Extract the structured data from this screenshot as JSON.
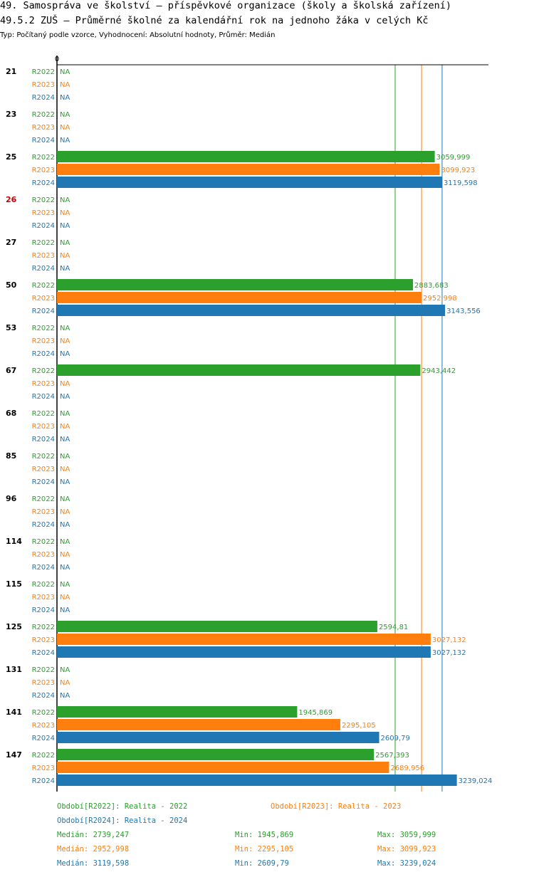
{
  "header": {
    "title": "49. Samospráva ve školství – příspěvkové organizace (školy a školská zařízení)",
    "subtitle": "49.5.2 ZUŠ – Průměrné školné za kalendářní rok na jednoho žáka v celých Kč",
    "meta": "Typ: Počítaný podle vzorce, Vyhodnocení: Absolutní hodnoty, Průměr: Medián"
  },
  "colors": {
    "R2022": "#2ca02c",
    "R2023": "#ff7f0e",
    "R2024": "#1f77b4",
    "highlight": "#cc0000",
    "axis": "#000000"
  },
  "chart_data": {
    "type": "bar",
    "orientation": "horizontal",
    "axis_zero_label": "0",
    "xlim": [
      0,
      3400
    ],
    "series_names": [
      "R2022",
      "R2023",
      "R2024"
    ],
    "na_label": "NA",
    "categories": [
      {
        "label": "21",
        "highlight": false,
        "values": [
          null,
          null,
          null
        ],
        "labels": [
          "NA",
          "NA",
          "NA"
        ]
      },
      {
        "label": "23",
        "highlight": false,
        "values": [
          null,
          null,
          null
        ],
        "labels": [
          "NA",
          "NA",
          "NA"
        ]
      },
      {
        "label": "25",
        "highlight": false,
        "values": [
          3059.999,
          3099.923,
          3119.598
        ],
        "labels": [
          "3059,999",
          "3099,923",
          "3119,598"
        ]
      },
      {
        "label": "26",
        "highlight": true,
        "values": [
          null,
          null,
          null
        ],
        "labels": [
          "NA",
          "NA",
          "NA"
        ]
      },
      {
        "label": "27",
        "highlight": false,
        "values": [
          null,
          null,
          null
        ],
        "labels": [
          "NA",
          "NA",
          "NA"
        ]
      },
      {
        "label": "50",
        "highlight": false,
        "values": [
          2883.683,
          2952.998,
          3143.556
        ],
        "labels": [
          "2883,683",
          "2952,998",
          "3143,556"
        ]
      },
      {
        "label": "53",
        "highlight": false,
        "values": [
          null,
          null,
          null
        ],
        "labels": [
          "NA",
          "NA",
          "NA"
        ]
      },
      {
        "label": "67",
        "highlight": false,
        "values": [
          2943.442,
          null,
          null
        ],
        "labels": [
          "2943,442",
          "NA",
          "NA"
        ]
      },
      {
        "label": "68",
        "highlight": false,
        "values": [
          null,
          null,
          null
        ],
        "labels": [
          "NA",
          "NA",
          "NA"
        ]
      },
      {
        "label": "85",
        "highlight": false,
        "values": [
          null,
          null,
          null
        ],
        "labels": [
          "NA",
          "NA",
          "NA"
        ]
      },
      {
        "label": "96",
        "highlight": false,
        "values": [
          null,
          null,
          null
        ],
        "labels": [
          "NA",
          "NA",
          "NA"
        ]
      },
      {
        "label": "114",
        "highlight": false,
        "values": [
          null,
          null,
          null
        ],
        "labels": [
          "NA",
          "NA",
          "NA"
        ]
      },
      {
        "label": "115",
        "highlight": false,
        "values": [
          null,
          null,
          null
        ],
        "labels": [
          "NA",
          "NA",
          "NA"
        ]
      },
      {
        "label": "125",
        "highlight": false,
        "values": [
          2594.81,
          3027.132,
          3027.132
        ],
        "labels": [
          "2594,81",
          "3027,132",
          "3027,132"
        ]
      },
      {
        "label": "131",
        "highlight": false,
        "values": [
          null,
          null,
          null
        ],
        "labels": [
          "NA",
          "NA",
          "NA"
        ]
      },
      {
        "label": "141",
        "highlight": false,
        "values": [
          1945.869,
          2295.105,
          2609.79
        ],
        "labels": [
          "1945,869",
          "2295,105",
          "2609,79"
        ]
      },
      {
        "label": "147",
        "highlight": false,
        "values": [
          2567.393,
          2689.956,
          3239.024
        ],
        "labels": [
          "2567,393",
          "2689,956",
          "3239,024"
        ]
      }
    ],
    "reference_lines": [
      {
        "series": "R2022",
        "value": 2739.247
      },
      {
        "series": "R2023",
        "value": 2952.998
      },
      {
        "series": "R2024",
        "value": 3119.598
      }
    ]
  },
  "legend": {
    "periods": [
      {
        "series": "R2022",
        "text": "Období[R2022]: Realita - 2022"
      },
      {
        "series": "R2023",
        "text": "Období[R2023]: Realita - 2023"
      },
      {
        "series": "R2024",
        "text": "Období[R2024]: Realita - 2024"
      }
    ],
    "stats": [
      {
        "series": "R2022",
        "median": "Medián: 2739,247",
        "min": "Min: 1945,869",
        "max": "Max: 3059,999"
      },
      {
        "series": "R2023",
        "median": "Medián: 2952,998",
        "min": "Min: 2295,105",
        "max": "Max: 3099,923"
      },
      {
        "series": "R2024",
        "median": "Medián: 3119,598",
        "min": "Min: 2609,79",
        "max": "Max: 3239,024"
      }
    ]
  }
}
